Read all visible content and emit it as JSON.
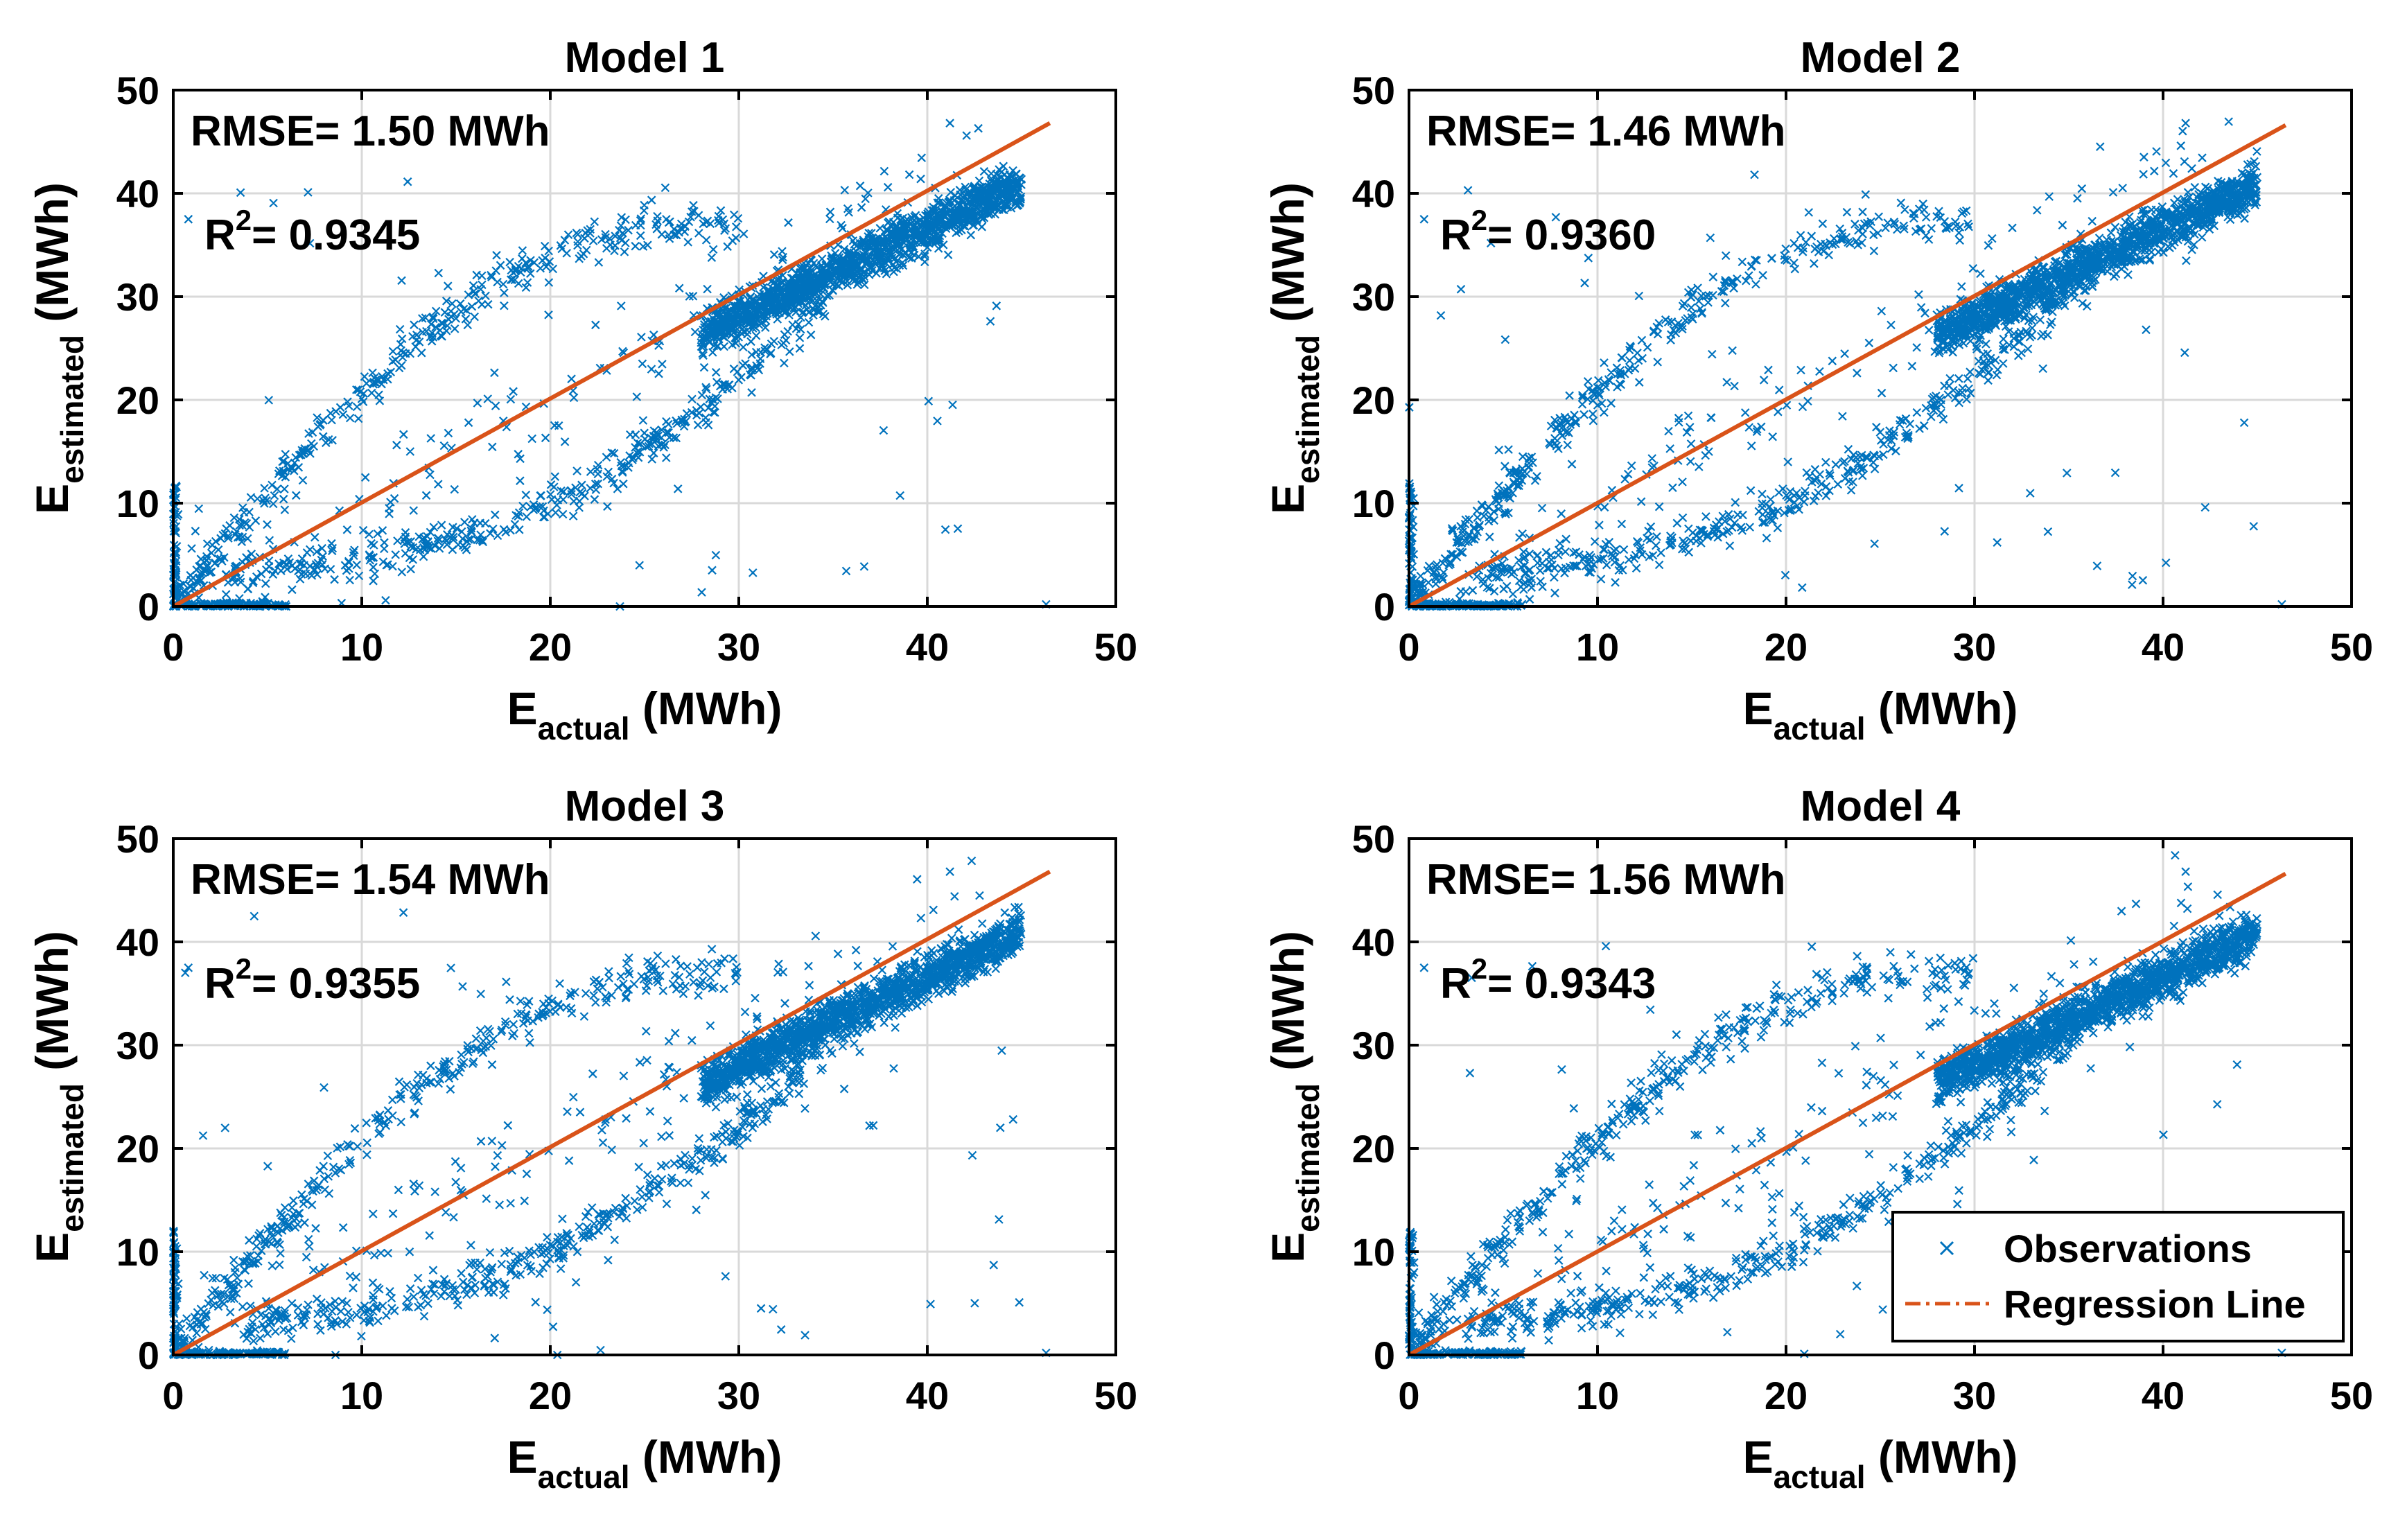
{
  "chart_data": [
    {
      "type": "scatter",
      "title": "Model 1",
      "xlabel": {
        "main": "E",
        "sub": "actual",
        "unit": " (MWh)"
      },
      "ylabel": {
        "main": "E",
        "sub": "estimated",
        "unit": " (MWh)"
      },
      "xlim": [
        0,
        50
      ],
      "ylim": [
        0,
        50
      ],
      "xticks": [
        "0",
        "10",
        "20",
        "30",
        "40",
        "50"
      ],
      "yticks": [
        "0",
        "10",
        "20",
        "30",
        "40",
        "50"
      ],
      "grid": true,
      "annotations": {
        "rmse": "RMSE= 1.50 MWh",
        "r2_prefix": "R",
        "r2_exp": "2",
        "r2_value": "= 0.9345"
      },
      "regression_line": {
        "x": [
          0,
          46.5
        ],
        "y": [
          0,
          46.8
        ]
      },
      "series": [
        {
          "name": "Observations",
          "marker": "x",
          "color": "#0072BD"
        }
      ],
      "seed": 11,
      "legend": null
    },
    {
      "type": "scatter",
      "title": "Model 2",
      "xlabel": {
        "main": "E",
        "sub": "actual",
        "unit": " (MWh)"
      },
      "ylabel": {
        "main": "E",
        "sub": "estimated",
        "unit": " (MWh)"
      },
      "xlim": [
        0,
        50
      ],
      "ylim": [
        0,
        50
      ],
      "xticks": [
        "0",
        "10",
        "20",
        "30",
        "40",
        "50"
      ],
      "yticks": [
        "0",
        "10",
        "20",
        "30",
        "40",
        "50"
      ],
      "grid": true,
      "annotations": {
        "rmse": "RMSE= 1.46 MWh",
        "r2_prefix": "R",
        "r2_exp": "2",
        "r2_value": "= 0.9360"
      },
      "regression_line": {
        "x": [
          0,
          46.5
        ],
        "y": [
          0,
          46.6
        ]
      },
      "series": [
        {
          "name": "Observations",
          "marker": "x",
          "color": "#0072BD"
        }
      ],
      "seed": 23,
      "legend": null
    },
    {
      "type": "scatter",
      "title": "Model 3",
      "xlabel": {
        "main": "E",
        "sub": "actual",
        "unit": " (MWh)"
      },
      "ylabel": {
        "main": "E",
        "sub": "estimated",
        "unit": " (MWh)"
      },
      "xlim": [
        0,
        50
      ],
      "ylim": [
        0,
        50
      ],
      "xticks": [
        "0",
        "10",
        "20",
        "30",
        "40",
        "50"
      ],
      "yticks": [
        "0",
        "10",
        "20",
        "30",
        "40",
        "50"
      ],
      "grid": true,
      "annotations": {
        "rmse": "RMSE= 1.54 MWh",
        "r2_prefix": "R",
        "r2_exp": "2",
        "r2_value": "= 0.9355"
      },
      "regression_line": {
        "x": [
          0,
          46.5
        ],
        "y": [
          0,
          46.8
        ]
      },
      "series": [
        {
          "name": "Observations",
          "marker": "x",
          "color": "#0072BD"
        }
      ],
      "seed": 37,
      "legend": null
    },
    {
      "type": "scatter",
      "title": "Model 4",
      "xlabel": {
        "main": "E",
        "sub": "actual",
        "unit": " (MWh)"
      },
      "ylabel": {
        "main": "E",
        "sub": "estimated",
        "unit": " (MWh)"
      },
      "xlim": [
        0,
        50
      ],
      "ylim": [
        0,
        50
      ],
      "xticks": [
        "0",
        "10",
        "20",
        "30",
        "40",
        "50"
      ],
      "yticks": [
        "0",
        "10",
        "20",
        "30",
        "40",
        "50"
      ],
      "grid": true,
      "annotations": {
        "rmse": "RMSE= 1.56 MWh",
        "r2_prefix": "R",
        "r2_exp": "2",
        "r2_value": "= 0.9343"
      },
      "regression_line": {
        "x": [
          0,
          46.5
        ],
        "y": [
          0,
          46.6
        ]
      },
      "series": [
        {
          "name": "Observations",
          "marker": "x",
          "color": "#0072BD"
        }
      ],
      "seed": 53,
      "legend": {
        "position": "bottom-right",
        "entries": [
          "Observations",
          "Regression Line"
        ]
      }
    }
  ],
  "colors": {
    "observations": "#0072BD",
    "regression": "#D95319",
    "grid": "#D9D9D9"
  }
}
